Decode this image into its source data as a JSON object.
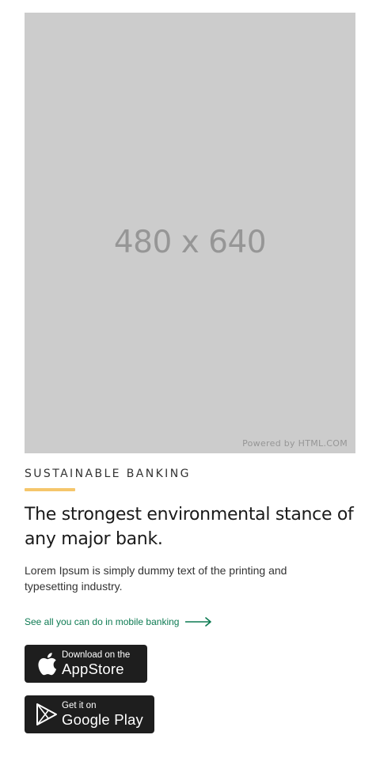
{
  "hero_image": {
    "dimensions_label": "480 x 640",
    "credit": "Powered by HTML.COM"
  },
  "section": {
    "eyebrow": "SUSTAINABLE BANKING",
    "headline": "The strongest environmental stance of any major bank.",
    "body": "Lorem Ipsum is simply dummy text of the printing and typesetting industry.",
    "cta_label": "See all you can do in mobile banking"
  },
  "store_buttons": {
    "appstore": {
      "small": "Download on the",
      "big": "AppStore",
      "icon": "apple-icon"
    },
    "googleplay": {
      "small": "Get it on",
      "big": "Google Play",
      "icon": "google-play-icon"
    }
  },
  "colors": {
    "accent": "#f5c66b",
    "link": "#0d7a52",
    "button_bg": "#1e1e1e",
    "placeholder_bg": "#cccccc"
  }
}
